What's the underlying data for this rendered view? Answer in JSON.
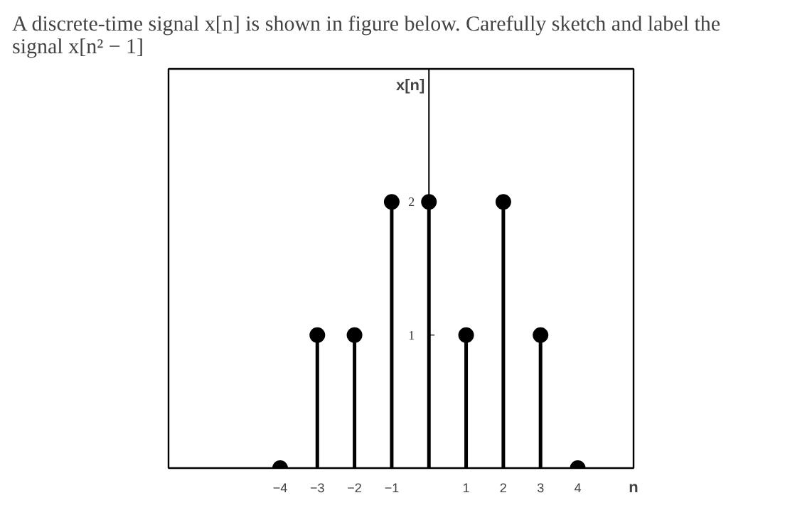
{
  "chart_data": {
    "type": "lollipop",
    "title": "A discrete-time signal x[n] is shown in figure below. Carefully sketch and label the\nsignal x[n² − 1]",
    "ylabel": "x[n]",
    "xlabel": "n",
    "x": [
      -4,
      -3,
      -2,
      -1,
      0,
      1,
      2,
      3,
      4
    ],
    "series": [
      {
        "color": "#000000",
        "values": [
          0,
          1,
          1,
          2,
          2,
          1,
          2,
          1,
          0
        ]
      }
    ],
    "xlim": [
      -7,
      5.5
    ],
    "ylim": [
      0,
      3
    ],
    "xticks": [
      -4,
      -3,
      -2,
      -1,
      1,
      2,
      3,
      4
    ],
    "yticks": [
      1,
      2
    ],
    "grid": false,
    "marker": "circle"
  }
}
